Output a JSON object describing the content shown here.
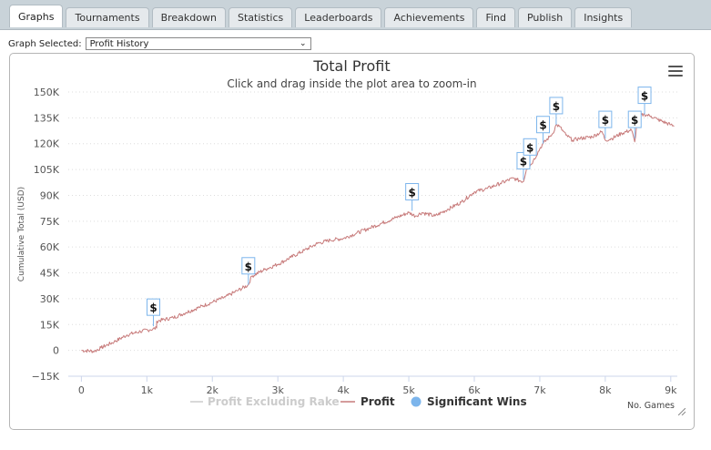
{
  "tabs": [
    {
      "label": "Graphs",
      "active": true
    },
    {
      "label": "Tournaments",
      "active": false
    },
    {
      "label": "Breakdown",
      "active": false
    },
    {
      "label": "Statistics",
      "active": false
    },
    {
      "label": "Leaderboards",
      "active": false
    },
    {
      "label": "Achievements",
      "active": false
    },
    {
      "label": "Find",
      "active": false
    },
    {
      "label": "Publish",
      "active": false
    },
    {
      "label": "Insights",
      "active": false
    }
  ],
  "graph_selector": {
    "label": "Graph Selected:",
    "value": "Profit History"
  },
  "icons": {
    "menu": "hamburger-menu-icon",
    "dropdown": "chevron-down-icon",
    "win_marker": "dollar-flag-icon"
  },
  "colors": {
    "profit_line": "#c77a7a",
    "rake_line": "#cccccc",
    "significant_wins": "#7cb5ec"
  },
  "chart_data": {
    "type": "line",
    "title": "Total Profit",
    "subtitle": "Click and drag inside the plot area to zoom-in",
    "xlabel": "No. Games",
    "ylabel": "Cumulative Total (USD)",
    "xlim": [
      -200,
      9100
    ],
    "ylim": [
      -15000,
      150000
    ],
    "x_ticks": [
      0,
      1000,
      2000,
      3000,
      4000,
      5000,
      6000,
      7000,
      8000,
      9000
    ],
    "x_tick_labels": [
      "0",
      "1k",
      "2k",
      "3k",
      "4k",
      "5k",
      "6k",
      "7k",
      "8k",
      "9k"
    ],
    "y_ticks": [
      -15000,
      0,
      15000,
      30000,
      45000,
      60000,
      75000,
      90000,
      105000,
      120000,
      135000,
      150000
    ],
    "y_tick_labels": [
      "−15K",
      "0",
      "15K",
      "30K",
      "45K",
      "60K",
      "75K",
      "90K",
      "105K",
      "120K",
      "135K",
      "150K"
    ],
    "grid": true,
    "legend_position": "bottom-center",
    "legend": [
      "Profit Excluding Rake",
      "Profit",
      "Significant Wins"
    ],
    "series": [
      {
        "name": "Profit",
        "points": [
          [
            0,
            0
          ],
          [
            200,
            -500
          ],
          [
            300,
            1500
          ],
          [
            500,
            5000
          ],
          [
            700,
            9000
          ],
          [
            900,
            11000
          ],
          [
            1050,
            12000
          ],
          [
            1150,
            13000
          ],
          [
            1150,
            17000
          ],
          [
            1400,
            19000
          ],
          [
            1600,
            22000
          ],
          [
            1800,
            25000
          ],
          [
            2000,
            28000
          ],
          [
            2200,
            31000
          ],
          [
            2400,
            35000
          ],
          [
            2550,
            38000
          ],
          [
            2600,
            43000
          ],
          [
            2800,
            47000
          ],
          [
            3000,
            50000
          ],
          [
            3200,
            54000
          ],
          [
            3400,
            58000
          ],
          [
            3600,
            62000
          ],
          [
            3800,
            64000
          ],
          [
            4000,
            65000
          ],
          [
            4200,
            68000
          ],
          [
            4400,
            71000
          ],
          [
            4600,
            74000
          ],
          [
            4800,
            77000
          ],
          [
            5000,
            80000
          ],
          [
            5100,
            78000
          ],
          [
            5200,
            80000
          ],
          [
            5400,
            78000
          ],
          [
            5600,
            82000
          ],
          [
            5800,
            86000
          ],
          [
            6000,
            92000
          ],
          [
            6200,
            94000
          ],
          [
            6400,
            97000
          ],
          [
            6600,
            100000
          ],
          [
            6650,
            99000
          ],
          [
            6750,
            98000
          ],
          [
            6800,
            106000
          ],
          [
            6850,
            107000
          ],
          [
            6900,
            110000
          ],
          [
            7000,
            117000
          ],
          [
            7050,
            120000
          ],
          [
            7150,
            124000
          ],
          [
            7200,
            126000
          ],
          [
            7250,
            131000
          ],
          [
            7300,
            130000
          ],
          [
            7400,
            125000
          ],
          [
            7500,
            122000
          ],
          [
            7600,
            123000
          ],
          [
            7800,
            124000
          ],
          [
            7950,
            127000
          ],
          [
            8000,
            122000
          ],
          [
            8100,
            123000
          ],
          [
            8250,
            126000
          ],
          [
            8400,
            128000
          ],
          [
            8450,
            121000
          ],
          [
            8500,
            136000
          ],
          [
            8600,
            137000
          ],
          [
            8700,
            136000
          ],
          [
            8800,
            134000
          ],
          [
            9000,
            131000
          ],
          [
            9050,
            130000
          ]
        ]
      }
    ],
    "significant_wins": [
      {
        "x": 1100,
        "y": 14000,
        "label": "$"
      },
      {
        "x": 2550,
        "y": 38000,
        "label": "$"
      },
      {
        "x": 5050,
        "y": 81000,
        "label": "$"
      },
      {
        "x": 6750,
        "y": 99000,
        "label": "$"
      },
      {
        "x": 6850,
        "y": 107000,
        "label": "$"
      },
      {
        "x": 7050,
        "y": 120000,
        "label": "$"
      },
      {
        "x": 7250,
        "y": 131000,
        "label": "$"
      },
      {
        "x": 8000,
        "y": 123000,
        "label": "$"
      },
      {
        "x": 8450,
        "y": 123000,
        "label": "$"
      },
      {
        "x": 8600,
        "y": 137000,
        "label": "$"
      }
    ]
  }
}
